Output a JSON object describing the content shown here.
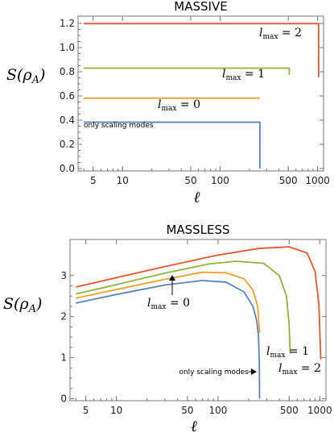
{
  "chart_data": [
    {
      "type": "line",
      "title": "MASSIVE",
      "xlabel": "ℓ",
      "ylabel": "S(ρ_A)",
      "xscale": "log",
      "xlim": [
        3.5,
        1150
      ],
      "ylim": [
        -0.02,
        1.26
      ],
      "xticks": [
        5,
        10,
        50,
        100,
        500,
        1000
      ],
      "xtick_labels": [
        "5",
        "10",
        "50",
        "100",
        "500",
        "1000"
      ],
      "yticks": [
        0,
        0.2,
        0.4,
        0.6,
        0.8,
        1.0,
        1.2
      ],
      "ytick_labels": [
        "0.0",
        "0.2",
        "0.4",
        "0.6",
        "0.8",
        "1.0",
        "1.2"
      ],
      "series": [
        {
          "key": "scaling",
          "color": "#5b84b9",
          "x": [
            4,
            20,
            100,
            250,
            256,
            256
          ],
          "y": [
            0.383,
            0.383,
            0.383,
            0.383,
            0.383,
            0.0
          ]
        },
        {
          "key": "l0",
          "color": "#eaa12c",
          "x": [
            4,
            20,
            100,
            256
          ],
          "y": [
            0.582,
            0.582,
            0.582,
            0.582
          ]
        },
        {
          "key": "l1",
          "color": "#8db43e",
          "x": [
            4,
            20,
            100,
            490,
            512,
            512
          ],
          "y": [
            0.83,
            0.83,
            0.83,
            0.83,
            0.83,
            0.775
          ]
        },
        {
          "key": "l2",
          "color": "#e2582d",
          "x": [
            4,
            20,
            100,
            980,
            1024,
            1024
          ],
          "y": [
            1.198,
            1.198,
            1.198,
            1.198,
            1.198,
            0.755
          ]
        }
      ],
      "annotations": [
        {
          "key": "l2",
          "label": "l",
          "sub": "max",
          "rest": " = 2"
        },
        {
          "key": "l1",
          "label": "l",
          "sub": "max",
          "rest": " = 1"
        },
        {
          "key": "l0",
          "label": "l",
          "sub": "max",
          "rest": " = 0"
        },
        {
          "key": "scaling",
          "text": "only scaling modes"
        }
      ]
    },
    {
      "type": "line",
      "title": "MASSLESS",
      "xlabel": "ℓ",
      "ylabel": "S(ρ_A)",
      "xscale": "log",
      "xlim": [
        3.5,
        1150
      ],
      "ylim": [
        -0.05,
        3.88
      ],
      "xticks": [
        5,
        10,
        50,
        100,
        500,
        1000
      ],
      "xtick_labels": [
        "5",
        "10",
        "50",
        "100",
        "500",
        "1000"
      ],
      "yticks": [
        0,
        1,
        2,
        3
      ],
      "ytick_labels": [
        "0",
        "1",
        "2",
        "3"
      ],
      "series": [
        {
          "key": "scaling",
          "color": "#5b84b9",
          "x": [
            4,
            10,
            30,
            70,
            120,
            180,
            220,
            240,
            250,
            254,
            256
          ],
          "y": [
            2.33,
            2.54,
            2.77,
            2.88,
            2.84,
            2.6,
            2.25,
            1.9,
            1.5,
            0.9,
            0.0
          ]
        },
        {
          "key": "l0",
          "color": "#eaa12c",
          "x": [
            4,
            10,
            30,
            70,
            120,
            180,
            220,
            245,
            256
          ],
          "y": [
            2.45,
            2.66,
            2.91,
            3.08,
            3.07,
            2.92,
            2.65,
            2.25,
            1.6
          ]
        },
        {
          "key": "l1",
          "color": "#8db43e",
          "x": [
            4,
            10,
            30,
            80,
            150,
            280,
            400,
            470,
            500,
            512
          ],
          "y": [
            2.55,
            2.78,
            3.06,
            3.28,
            3.35,
            3.3,
            3.0,
            2.5,
            1.8,
            1.1
          ]
        },
        {
          "key": "l2",
          "color": "#e2582d",
          "x": [
            4,
            10,
            30,
            100,
            250,
            500,
            750,
            900,
            980,
            1024
          ],
          "y": [
            2.72,
            2.95,
            3.22,
            3.5,
            3.66,
            3.7,
            3.55,
            3.1,
            2.3,
            0.95
          ]
        }
      ],
      "annotations": [
        {
          "key": "l0",
          "label": "l",
          "sub": "max",
          "rest": " = 0"
        },
        {
          "key": "l1",
          "label": "l",
          "sub": "max",
          "rest": " = 1"
        },
        {
          "key": "l2",
          "label": "l",
          "sub": "max",
          "rest": " = 2"
        },
        {
          "key": "scaling",
          "text": "only scaling modes"
        }
      ]
    }
  ]
}
